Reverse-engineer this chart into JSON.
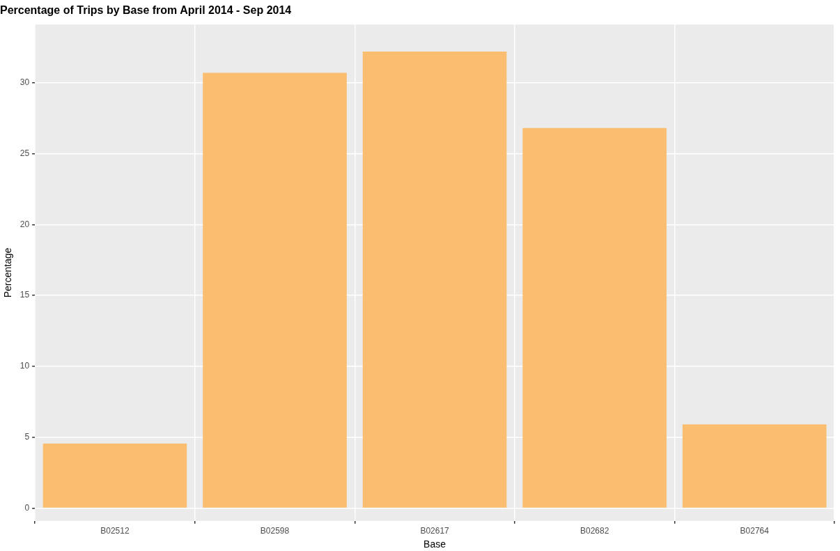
{
  "chart_data": {
    "type": "bar",
    "title": "Percentage of Trips by Base from April 2014 - Sep 2014",
    "xlabel": "Base",
    "ylabel": "Percentage",
    "categories": [
      "B02512",
      "B02598",
      "B02617",
      "B02682",
      "B02764"
    ],
    "values": [
      4.56,
      30.7,
      32.2,
      26.8,
      5.9
    ],
    "color": "#fbbe70",
    "ylim": [
      -0.9,
      34.1
    ],
    "yticks": [
      0,
      5,
      10,
      15,
      20,
      25,
      30
    ],
    "grid": true
  }
}
